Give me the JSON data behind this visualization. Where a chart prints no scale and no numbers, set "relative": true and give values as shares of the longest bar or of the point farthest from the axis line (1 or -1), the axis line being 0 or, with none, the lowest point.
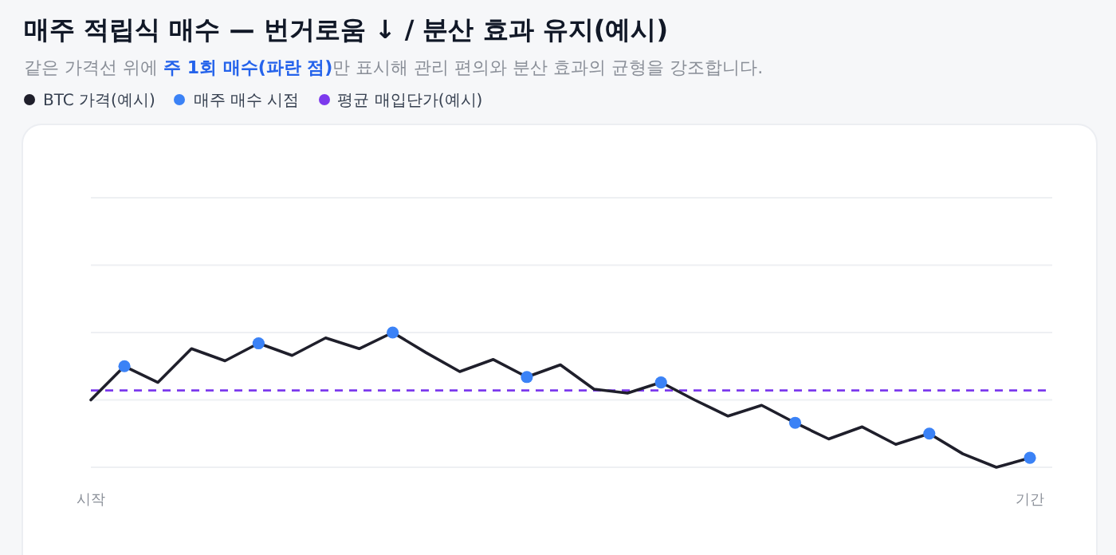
{
  "chart_data": {
    "type": "line",
    "title": "매주 적립식 매수 — 번거로움 ↓ / 분산 효과 유지(예시)",
    "subtitle": "같은 가격선 위에 **주 1회 매수(파란 점)**만 표시해 관리 편의와 분산 효과의 균형을 강조합니다.",
    "relative": true,
    "legend": "top left",
    "categories": [
      "시작",
      null,
      null,
      null,
      null,
      null,
      null,
      null,
      null,
      null,
      null,
      null,
      null,
      null,
      null,
      null,
      null,
      null,
      null,
      null,
      null,
      null,
      null,
      null,
      null,
      null,
      null,
      null,
      "기간"
    ],
    "series": [
      {
        "name": "BTC 가격(예시)",
        "color": "#1f1f2b",
        "marker": "none",
        "values": [
          0.5,
          0.75,
          0.63,
          0.88,
          0.79,
          0.92,
          0.83,
          0.96,
          0.88,
          1,
          0.85,
          0.71,
          0.8,
          0.67,
          0.76,
          0.58,
          0.55,
          0.63,
          0.5,
          0.38,
          0.46,
          0.33,
          0.21,
          0.3,
          0.17,
          0.25,
          0.1,
          0,
          0.07
        ]
      },
      {
        "name": "매주 매수 시점",
        "type": "scatter",
        "color": "#3b82f6",
        "marker": "circle",
        "values": [
          null,
          0.75,
          null,
          null,
          null,
          0.92,
          null,
          null,
          null,
          1,
          null,
          null,
          null,
          0.67,
          null,
          null,
          null,
          0.63,
          null,
          null,
          null,
          0.33,
          null,
          null,
          null,
          0.25,
          null,
          null,
          0.07
        ]
      }
    ],
    "ref_lines": [
      {
        "axis": "y",
        "value": 0.5,
        "color": "#eef0f3",
        "line_style": "solid"
      },
      {
        "axis": "y",
        "value": 0.57,
        "label": "평균 매입단가(예시)",
        "color": "#7c3aed",
        "line_style": "dashed"
      }
    ]
  }
}
